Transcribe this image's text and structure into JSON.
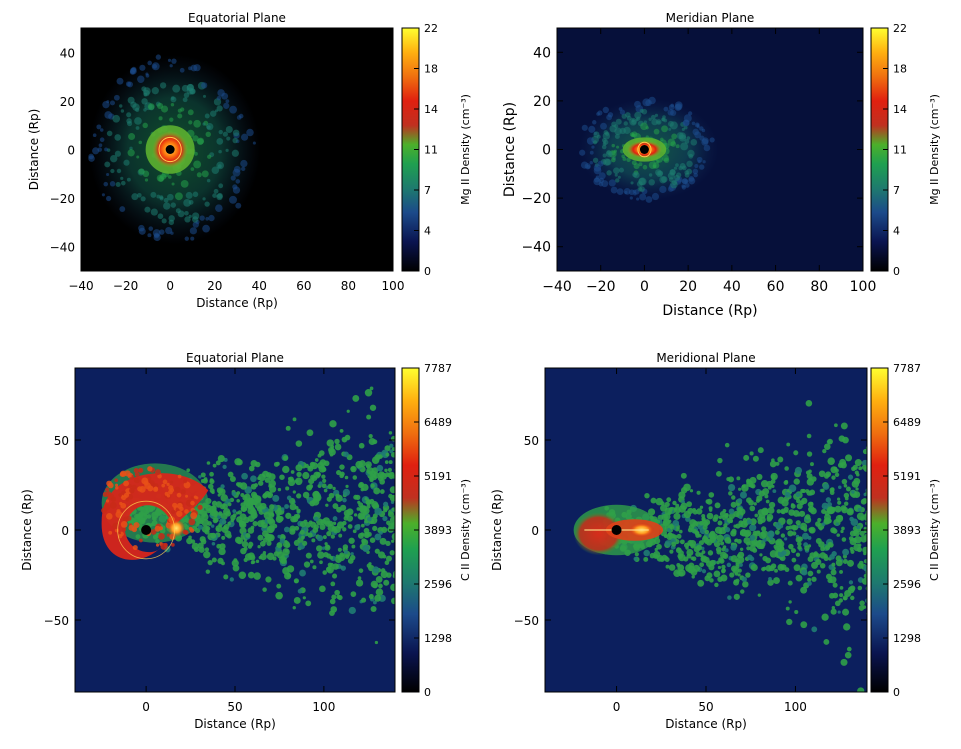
{
  "chart_data": [
    {
      "type": "heatmap",
      "title": "Equatorial Plane",
      "xlabel": "Distance (Rp)",
      "ylabel": "Distance (Rp)",
      "xlim": [
        -40,
        100
      ],
      "ylim": [
        -50,
        50
      ],
      "xticks": [
        "−40",
        "−20",
        "0",
        "20",
        "40",
        "60",
        "80",
        "100"
      ],
      "yticks": [
        "−40",
        "−20",
        "0",
        "20",
        "40"
      ],
      "colorbar": {
        "label": "Mg II Density (cm⁻³)",
        "ticks": [
          "0",
          "4",
          "7",
          "11",
          "14",
          "18",
          "22"
        ],
        "range": [
          0,
          22
        ]
      },
      "planet_position": [
        0,
        0
      ],
      "cloud": {
        "center": [
          0,
          0
        ],
        "extent_x": [
          -25,
          50
        ],
        "extent_y": [
          -25,
          30
        ],
        "peak_density": 22
      }
    },
    {
      "type": "heatmap",
      "title": "Meridian Plane",
      "xlabel": "Distance (Rp)",
      "ylabel": "Distance (Rp)",
      "xlim": [
        -40,
        100
      ],
      "ylim": [
        -50,
        50
      ],
      "xticks": [
        "−40",
        "−20",
        "0",
        "20",
        "40",
        "60",
        "80",
        "100"
      ],
      "yticks": [
        "−40",
        "−20",
        "0",
        "20",
        "40"
      ],
      "colorbar": {
        "label": "Mg II Density (cm⁻³)",
        "ticks": [
          "0",
          "4",
          "7",
          "11",
          "14",
          "18",
          "22"
        ],
        "range": [
          0,
          22
        ]
      },
      "planet_position": [
        0,
        0
      ],
      "cloud": {
        "center": [
          0,
          0
        ],
        "extent_x": [
          -25,
          30
        ],
        "extent_y": [
          -20,
          15
        ],
        "peak_density": 22
      }
    },
    {
      "type": "heatmap",
      "title": "Equatorial Plane",
      "xlabel": "Distance (Rp)",
      "ylabel": "Distance (Rp)",
      "xlim": [
        -40,
        140
      ],
      "ylim": [
        -90,
        90
      ],
      "xticks": [
        "0",
        "50",
        "100"
      ],
      "yticks": [
        "−50",
        "0",
        "50"
      ],
      "colorbar": {
        "label": "C II Density (cm⁻³)",
        "ticks": [
          "0",
          "1298",
          "2596",
          "3893",
          "5191",
          "6489",
          "7787"
        ],
        "range": [
          0,
          7787
        ]
      },
      "planet_position": [
        0,
        0
      ],
      "cloud": {
        "center": [
          0,
          10
        ],
        "extent_x": [
          -30,
          140
        ],
        "extent_y": [
          -90,
          90
        ],
        "peak_density": 7787
      }
    },
    {
      "type": "heatmap",
      "title": "Meridional Plane",
      "xlabel": "Distance (Rp)",
      "ylabel": "Distance (Rp)",
      "xlim": [
        -40,
        140
      ],
      "ylim": [
        -90,
        90
      ],
      "xticks": [
        "0",
        "50",
        "100"
      ],
      "yticks": [
        "−50",
        "0",
        "50"
      ],
      "colorbar": {
        "label": "C II Density (cm⁻³)",
        "ticks": [
          "0",
          "1298",
          "2596",
          "3893",
          "5191",
          "6489",
          "7787"
        ],
        "range": [
          0,
          7787
        ]
      },
      "planet_position": [
        0,
        0
      ],
      "cloud": {
        "center": [
          0,
          0
        ],
        "extent_x": [
          -30,
          140
        ],
        "extent_y": [
          -90,
          90
        ],
        "peak_density": 7787
      }
    }
  ]
}
